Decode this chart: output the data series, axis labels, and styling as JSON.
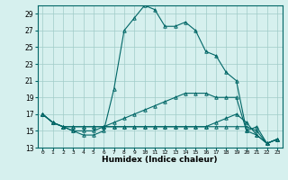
{
  "xlabel": "Humidex (Indice chaleur)",
  "ylabel": "",
  "background_color": "#d6f0ee",
  "grid_color": "#a0ccc8",
  "line_color": "#006666",
  "xlim": [
    -0.5,
    23.5
  ],
  "ylim": [
    13,
    30
  ],
  "yticks": [
    13,
    15,
    17,
    19,
    21,
    23,
    25,
    27,
    29
  ],
  "xticks": [
    0,
    1,
    2,
    3,
    4,
    5,
    6,
    7,
    8,
    9,
    10,
    11,
    12,
    13,
    14,
    15,
    16,
    17,
    18,
    19,
    20,
    21,
    22,
    23
  ],
  "series": [
    [
      17.0,
      16.0,
      15.5,
      15.0,
      14.5,
      14.5,
      15.0,
      20.0,
      27.0,
      28.5,
      30.0,
      29.5,
      27.5,
      27.5,
      28.0,
      27.0,
      24.5,
      24.0,
      22.0,
      21.0,
      15.0,
      15.5,
      13.5,
      14.0
    ],
    [
      17.0,
      16.0,
      15.5,
      15.0,
      15.0,
      15.0,
      15.5,
      16.0,
      16.5,
      17.0,
      17.5,
      18.0,
      18.5,
      19.0,
      19.5,
      19.5,
      19.5,
      19.0,
      19.0,
      19.0,
      15.0,
      14.5,
      13.5,
      14.0
    ],
    [
      17.0,
      16.0,
      15.5,
      15.5,
      15.5,
      15.5,
      15.5,
      15.5,
      15.5,
      15.5,
      15.5,
      15.5,
      15.5,
      15.5,
      15.5,
      15.5,
      15.5,
      15.5,
      15.5,
      15.5,
      15.5,
      15.0,
      13.5,
      14.0
    ],
    [
      17.0,
      16.0,
      15.5,
      15.5,
      15.5,
      15.5,
      15.5,
      15.5,
      15.5,
      15.5,
      15.5,
      15.5,
      15.5,
      15.5,
      15.5,
      15.5,
      15.5,
      16.0,
      16.5,
      17.0,
      16.0,
      14.5,
      13.5,
      14.0
    ]
  ]
}
